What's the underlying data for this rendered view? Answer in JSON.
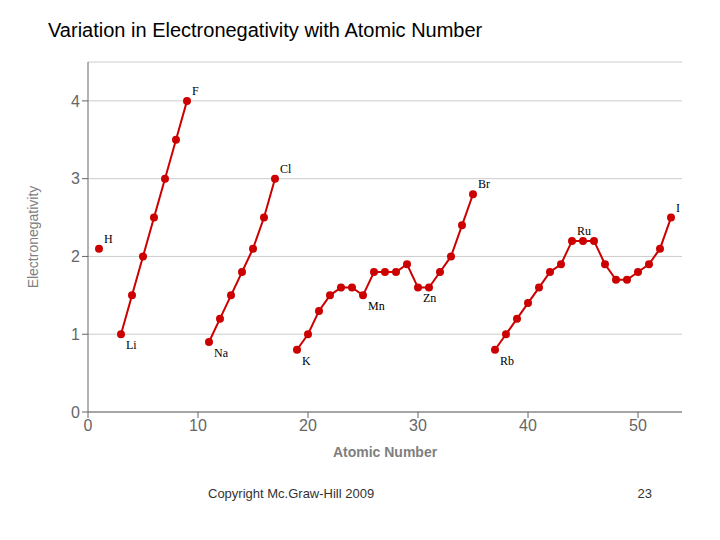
{
  "chart_data": {
    "type": "line",
    "title": "Variation in Electronegativity with Atomic Number",
    "x_label": "Atomic Number",
    "y_label": "Electronegativity",
    "footer": "Copyright Mc.Graw-Hill 2009",
    "page_number": "23",
    "color": "#cc0000",
    "marker": "circle",
    "grid": "y",
    "xlim": [
      0,
      54
    ],
    "ylim": [
      0,
      4.5
    ],
    "xticks": [
      0,
      10,
      20,
      30,
      40,
      50
    ],
    "yticks": [
      0,
      1,
      2,
      3,
      4
    ],
    "x": [
      1,
      2,
      3,
      4,
      5,
      6,
      7,
      8,
      9,
      10,
      11,
      12,
      13,
      14,
      15,
      16,
      17,
      18,
      19,
      20,
      21,
      22,
      23,
      24,
      25,
      26,
      27,
      28,
      29,
      30,
      31,
      32,
      33,
      34,
      35,
      36,
      37,
      38,
      39,
      40,
      41,
      42,
      43,
      44,
      45,
      46,
      47,
      48,
      49,
      50,
      51,
      52,
      53
    ],
    "values": [
      2.1,
      null,
      1.0,
      1.5,
      2.0,
      2.5,
      3.0,
      3.5,
      4.0,
      null,
      0.9,
      1.2,
      1.5,
      1.8,
      2.1,
      2.5,
      3.0,
      null,
      0.8,
      1.0,
      1.3,
      1.5,
      1.6,
      1.6,
      1.5,
      1.8,
      1.8,
      1.8,
      1.9,
      1.6,
      1.6,
      1.8,
      2.0,
      2.4,
      2.8,
      null,
      0.8,
      1.0,
      1.2,
      1.4,
      1.6,
      1.8,
      1.9,
      2.2,
      2.2,
      2.2,
      1.9,
      1.7,
      1.7,
      1.8,
      1.9,
      2.1,
      2.5
    ],
    "annotations": [
      {
        "text": "H",
        "x": 1,
        "y": 2.1
      },
      {
        "text": "Li",
        "x": 3,
        "y": 1.0
      },
      {
        "text": "F",
        "x": 9,
        "y": 4.0
      },
      {
        "text": "Na",
        "x": 11,
        "y": 0.9
      },
      {
        "text": "Cl",
        "x": 17,
        "y": 3.0
      },
      {
        "text": "K",
        "x": 19,
        "y": 0.8
      },
      {
        "text": "Mn",
        "x": 25,
        "y": 1.5
      },
      {
        "text": "Zn",
        "x": 30,
        "y": 1.6
      },
      {
        "text": "Br",
        "x": 35,
        "y": 2.8
      },
      {
        "text": "Rb",
        "x": 37,
        "y": 0.8
      },
      {
        "text": "Ru",
        "x": 44,
        "y": 2.2
      },
      {
        "text": "I",
        "x": 53,
        "y": 2.5
      }
    ]
  }
}
